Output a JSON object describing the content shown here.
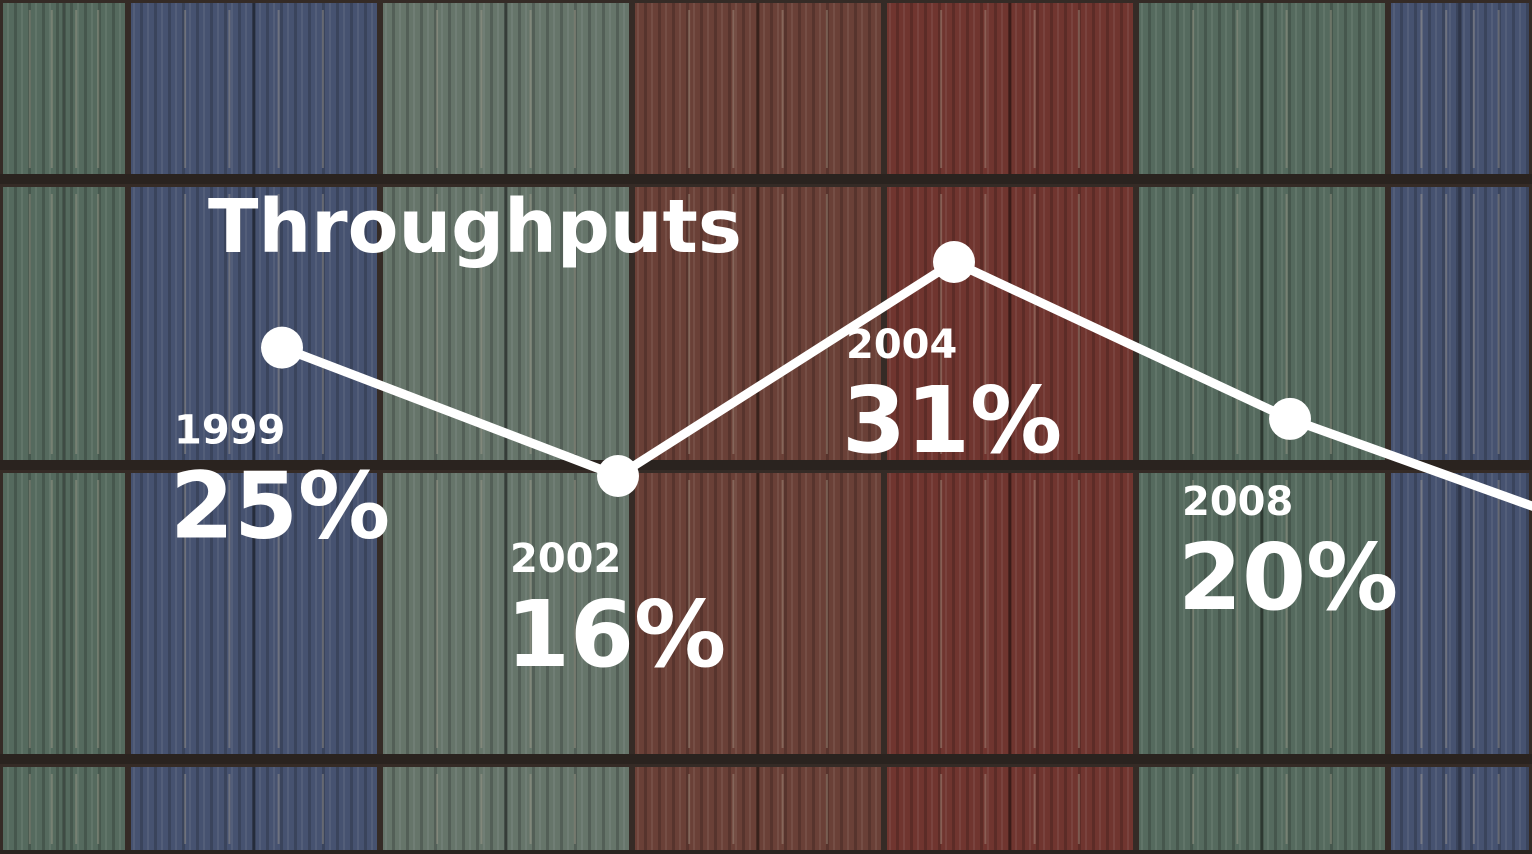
{
  "chart_data": {
    "type": "line",
    "title": "Throughputs",
    "categories": [
      "1999",
      "2002",
      "2004",
      "2008"
    ],
    "values": [
      25,
      16,
      31,
      20
    ],
    "value_labels": [
      "25%",
      "16%",
      "31%",
      "20%"
    ],
    "color": "#ffffff"
  }
}
